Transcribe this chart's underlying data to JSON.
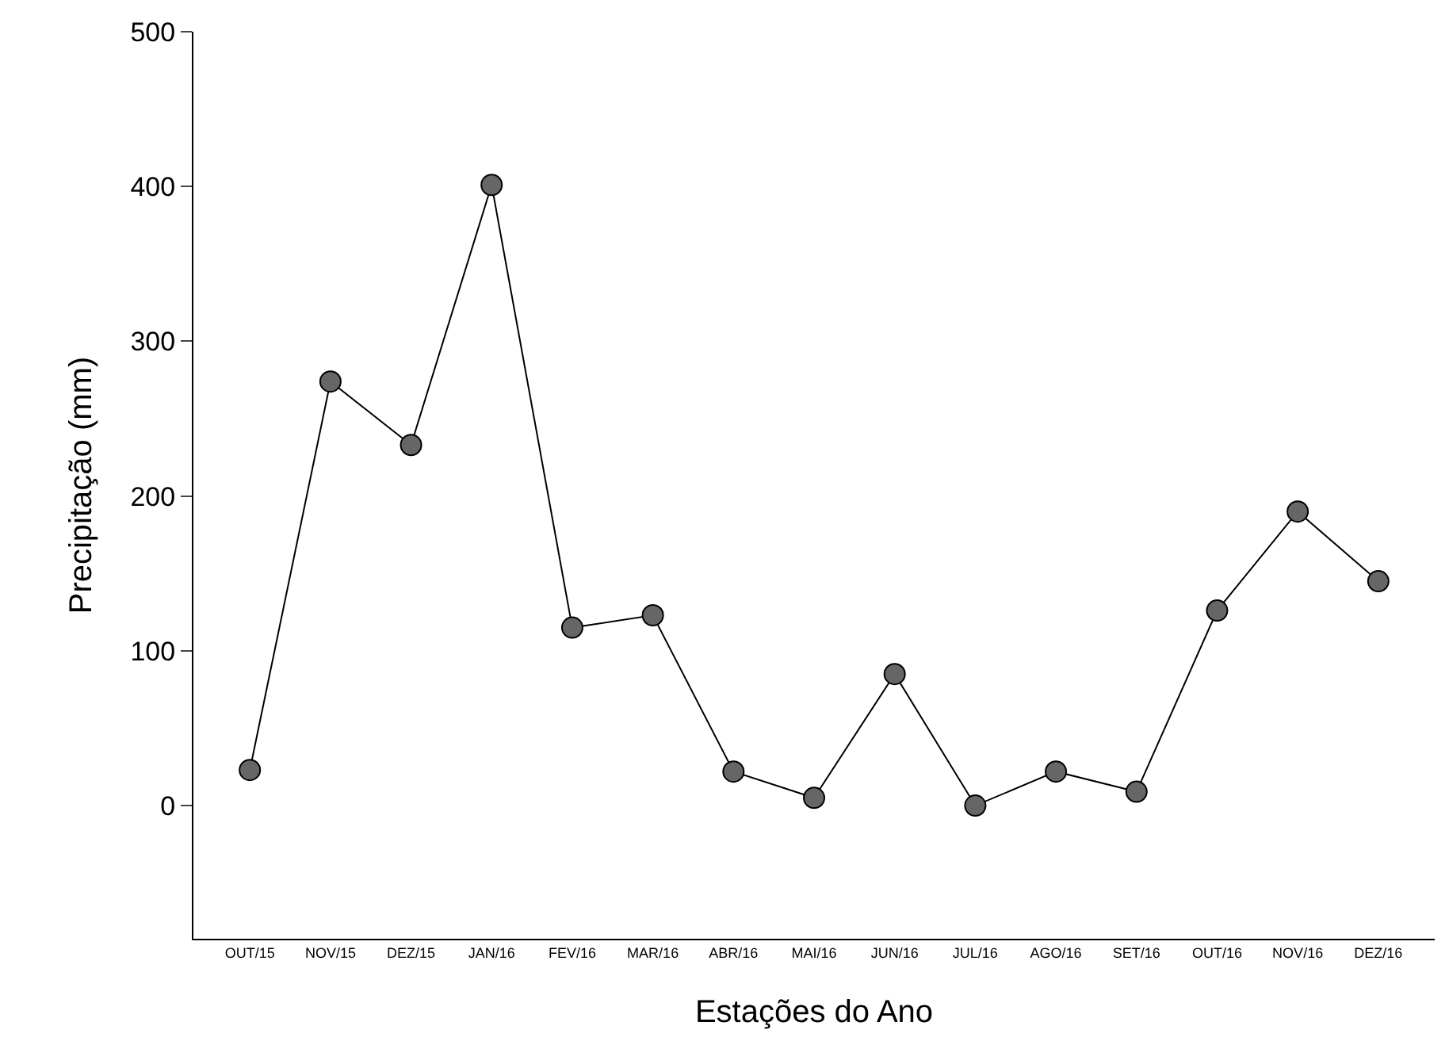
{
  "chart_data": {
    "type": "line",
    "xlabel": "Estações do Ano",
    "ylabel": "Precipitação (mm)",
    "categories": [
      "OUT/15",
      "NOV/15",
      "DEZ/15",
      "JAN/16",
      "FEV/16",
      "MAR/16",
      "ABR/16",
      "MAI/16",
      "JUN/16",
      "JUL/16",
      "AGO/16",
      "SET/16",
      "OUT/16",
      "NOV/16",
      "DEZ/16"
    ],
    "series": [
      {
        "color": "#666666",
        "values": [
          23,
          274,
          233,
          401,
          115,
          123,
          22,
          5,
          85,
          0,
          22,
          9,
          126,
          190,
          145
        ]
      }
    ],
    "ylim": [
      -86,
      500
    ],
    "yticks": [
      0,
      100,
      200,
      300,
      400,
      500
    ],
    "grid": false,
    "marker": "circle",
    "line_style": "solid"
  }
}
